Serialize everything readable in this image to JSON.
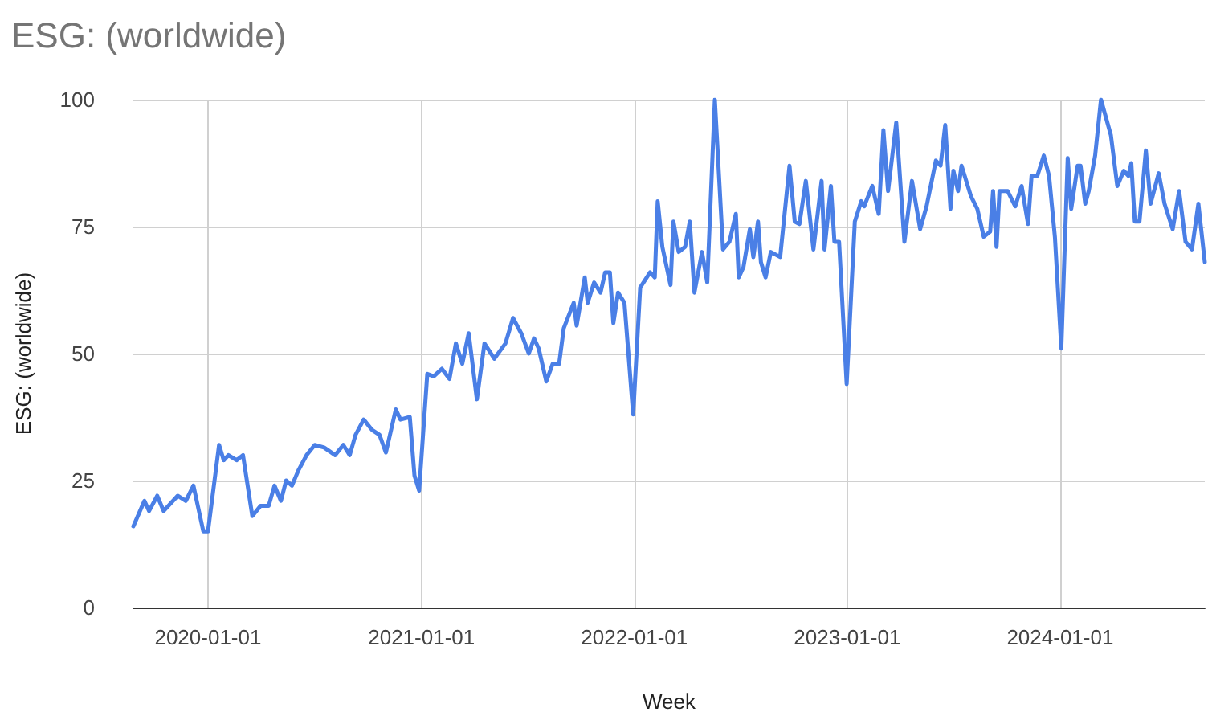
{
  "chart_data": {
    "type": "line",
    "title": "ESG: (worldwide)",
    "xlabel": "Week",
    "ylabel": "ESG: (worldwide)",
    "x": [
      "2019-08-26",
      "2019-09-14",
      "2019-09-22",
      "2019-10-06",
      "2019-10-17",
      "2019-11-10",
      "2019-11-24",
      "2019-12-07",
      "2019-12-24",
      "2020-01-01",
      "2020-01-20",
      "2020-01-28",
      "2020-02-05",
      "2020-02-19",
      "2020-03-01",
      "2020-03-17",
      "2020-03-31",
      "2020-04-14",
      "2020-04-24",
      "2020-05-05",
      "2020-05-14",
      "2020-05-24",
      "2020-06-04",
      "2020-06-18",
      "2020-07-02",
      "2020-07-18",
      "2020-08-06",
      "2020-08-20",
      "2020-08-31",
      "2020-09-10",
      "2020-09-24",
      "2020-10-08",
      "2020-10-21",
      "2020-11-01",
      "2020-11-18",
      "2020-11-26",
      "2020-12-12",
      "2020-12-20",
      "2020-12-28",
      "2021-01-11",
      "2021-01-22",
      "2021-02-05",
      "2021-02-18",
      "2021-03-01",
      "2021-03-12",
      "2021-03-23",
      "2021-04-06",
      "2021-04-19",
      "2021-05-06",
      "2021-05-25",
      "2021-06-07",
      "2021-06-21",
      "2021-07-04",
      "2021-07-13",
      "2021-07-21",
      "2021-08-03",
      "2021-08-14",
      "2021-08-25",
      "2021-09-02",
      "2021-09-19",
      "2021-09-24",
      "2021-10-08",
      "2021-10-13",
      "2021-10-24",
      "2021-11-04",
      "2021-11-12",
      "2021-11-20",
      "2021-11-26",
      "2021-12-04",
      "2021-12-15",
      "2021-12-30",
      "2022-01-11",
      "2022-01-28",
      "2022-02-05",
      "2022-02-10",
      "2022-02-18",
      "2022-03-04",
      "2022-03-09",
      "2022-03-18",
      "2022-03-29",
      "2022-04-06",
      "2022-04-14",
      "2022-04-27",
      "2022-05-06",
      "2022-05-19",
      "2022-06-02",
      "2022-06-13",
      "2022-06-24",
      "2022-06-29",
      "2022-07-07",
      "2022-07-18",
      "2022-07-24",
      "2022-08-01",
      "2022-08-06",
      "2022-08-14",
      "2022-08-23",
      "2022-09-08",
      "2022-09-24",
      "2022-10-03",
      "2022-10-11",
      "2022-10-22",
      "2022-11-04",
      "2022-11-18",
      "2022-11-23",
      "2022-12-04",
      "2022-12-10",
      "2022-12-18",
      "2022-12-31",
      "2023-01-14",
      "2023-01-25",
      "2023-01-30",
      "2023-02-13",
      "2023-02-24",
      "2023-03-04",
      "2023-03-12",
      "2023-03-26",
      "2023-04-09",
      "2023-04-22",
      "2023-05-06",
      "2023-05-17",
      "2023-06-02",
      "2023-06-10",
      "2023-06-18",
      "2023-06-27",
      "2023-07-02",
      "2023-07-10",
      "2023-07-16",
      "2023-08-01",
      "2023-08-12",
      "2023-08-23",
      "2023-09-03",
      "2023-09-08",
      "2023-09-14",
      "2023-09-19",
      "2023-10-03",
      "2023-10-16",
      "2023-10-27",
      "2023-11-07",
      "2023-11-13",
      "2023-11-23",
      "2023-12-04",
      "2023-12-13",
      "2023-12-23",
      "2024-01-03",
      "2024-01-14",
      "2024-01-20",
      "2024-01-31",
      "2024-02-05",
      "2024-02-13",
      "2024-02-19",
      "2024-03-01",
      "2024-03-11",
      "2024-03-28",
      "2024-04-08",
      "2024-04-19",
      "2024-04-27",
      "2024-05-02",
      "2024-05-08",
      "2024-05-16",
      "2024-05-27",
      "2024-06-04",
      "2024-06-18",
      "2024-06-28",
      "2024-07-12",
      "2024-07-23",
      "2024-08-03",
      "2024-08-14",
      "2024-08-25",
      "2024-09-05"
    ],
    "series": [
      {
        "color": "#4a7fe6",
        "values": [
          16,
          21,
          19,
          22,
          19,
          22,
          21,
          24,
          15,
          15,
          32,
          29,
          30,
          29,
          30,
          18,
          20,
          20,
          24,
          21,
          25,
          24,
          27,
          30,
          32,
          31.5,
          30,
          32,
          30,
          34,
          37,
          35,
          34,
          30.5,
          39,
          37,
          37.5,
          26,
          23,
          46,
          45.5,
          47,
          45,
          52,
          48,
          54,
          41,
          52,
          49,
          52,
          57,
          54,
          50,
          53,
          51,
          44.5,
          48,
          48,
          55,
          60,
          55.5,
          65,
          60,
          64,
          62,
          66,
          66,
          56,
          62,
          60,
          38,
          63,
          66,
          65,
          80,
          71,
          63.5,
          76,
          70,
          71,
          76,
          62,
          70,
          64,
          100,
          70.5,
          72,
          77.5,
          65,
          67,
          74.5,
          69,
          76,
          68,
          65,
          70,
          69,
          87,
          76,
          75.5,
          84,
          70.5,
          84,
          70.5,
          83,
          72,
          72,
          44,
          76,
          80,
          79,
          83,
          77.5,
          94,
          82,
          95.5,
          72,
          84,
          74.5,
          79,
          88,
          87,
          95,
          78.5,
          86,
          82,
          87,
          81,
          78.5,
          73,
          74,
          82,
          71,
          82,
          82,
          79,
          83,
          75.5,
          85,
          85,
          89,
          85,
          73,
          51,
          88.5,
          78.5,
          87,
          87,
          79.5,
          82,
          89,
          100,
          93,
          83,
          86,
          85,
          87.5,
          76,
          76,
          90,
          79.5,
          85.5,
          79.5,
          74.5,
          82,
          72,
          70.5,
          79.5,
          68
        ]
      }
    ],
    "xlim": [
      "2019-08-26",
      "2024-09-05"
    ],
    "xticks": [
      "2020-01-01",
      "2021-01-01",
      "2022-01-01",
      "2023-01-01",
      "2024-01-01"
    ],
    "ylim": [
      0,
      100
    ],
    "yticks": [
      0,
      25,
      50,
      75,
      100
    ],
    "grid": true,
    "marker": "none",
    "line_style": "solid"
  }
}
